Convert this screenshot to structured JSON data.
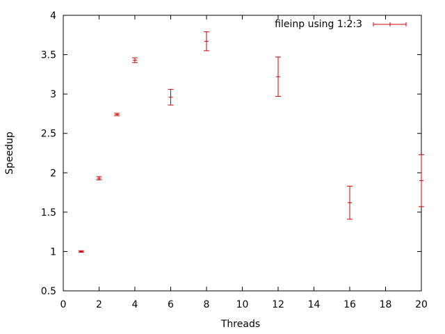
{
  "chart_data": {
    "type": "scatter",
    "title": "",
    "xlabel": "Threads",
    "ylabel": "Speedup",
    "xlim": [
      0,
      20
    ],
    "ylim": [
      0.5,
      4
    ],
    "x_ticks": [
      0,
      2,
      4,
      6,
      8,
      10,
      12,
      14,
      16,
      18,
      20
    ],
    "y_ticks": [
      0.5,
      1,
      1.5,
      2,
      2.5,
      3,
      3.5,
      4
    ],
    "grid": false,
    "legend_position": "top-right",
    "series": [
      {
        "name": "fileinp using 1:2:3",
        "color": "#cc0000",
        "points": [
          {
            "x": 1,
            "y": 1.0,
            "err": 0.01
          },
          {
            "x": 2,
            "y": 1.93,
            "err": 0.02
          },
          {
            "x": 3,
            "y": 2.74,
            "err": 0.015
          },
          {
            "x": 4,
            "y": 3.43,
            "err": 0.03
          },
          {
            "x": 6,
            "y": 2.96,
            "err": 0.1
          },
          {
            "x": 8,
            "y": 3.67,
            "err": 0.12
          },
          {
            "x": 12,
            "y": 3.22,
            "err": 0.25
          },
          {
            "x": 16,
            "y": 1.62,
            "err": 0.21
          },
          {
            "x": 20,
            "y": 1.9,
            "err": 0.33
          }
        ]
      }
    ]
  }
}
